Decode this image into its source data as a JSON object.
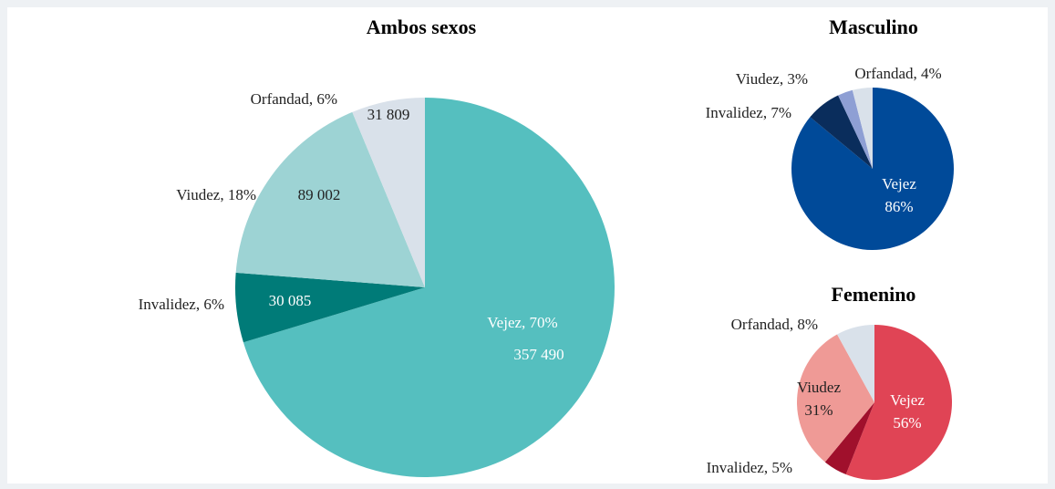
{
  "chart_data": [
    {
      "type": "pie",
      "title": "Ambos sexos",
      "categories": [
        "Vejez",
        "Invalidez",
        "Viudez",
        "Orfandad"
      ],
      "labels": [
        [
          "Vejez, 70%"
        ],
        [
          "Invalidez, 6%"
        ],
        [
          "Viudez, 18%"
        ],
        [
          "Orfandad, 6%"
        ]
      ],
      "values": [
        357490,
        30085,
        89002,
        31809
      ],
      "value_labels": [
        "357 490",
        "30 085",
        "89 002",
        "31 809"
      ],
      "colors": [
        "#55bfbf",
        "#007b78",
        "#9dd3d4",
        "#d9e1ea"
      ]
    },
    {
      "type": "pie",
      "title": "Masculino",
      "categories": [
        "Vejez",
        "Invalidez",
        "Viudez",
        "Orfandad"
      ],
      "labels": [
        [
          "Vejez",
          "86%"
        ],
        [
          "Invalidez, 7%"
        ],
        [
          "Viudez, 3%"
        ],
        [
          "Orfandad, 4%"
        ]
      ],
      "values": [
        86,
        7,
        3,
        4
      ],
      "colors": [
        "#004a99",
        "#0a2d5c",
        "#8e9fd4",
        "#d9e1ea"
      ]
    },
    {
      "type": "pie",
      "title": "Femenino",
      "categories": [
        "Vejez",
        "Invalidez",
        "Viudez",
        "Orfandad"
      ],
      "labels": [
        [
          "Vejez",
          "56%"
        ],
        [
          "Invalidez, 5%"
        ],
        [
          "Viudez",
          "31%"
        ],
        [
          "Orfandad, 8%"
        ]
      ],
      "values": [
        56,
        5,
        31,
        8
      ],
      "colors": [
        "#e04455",
        "#a0102c",
        "#ef9a96",
        "#d9e1ea"
      ]
    }
  ]
}
